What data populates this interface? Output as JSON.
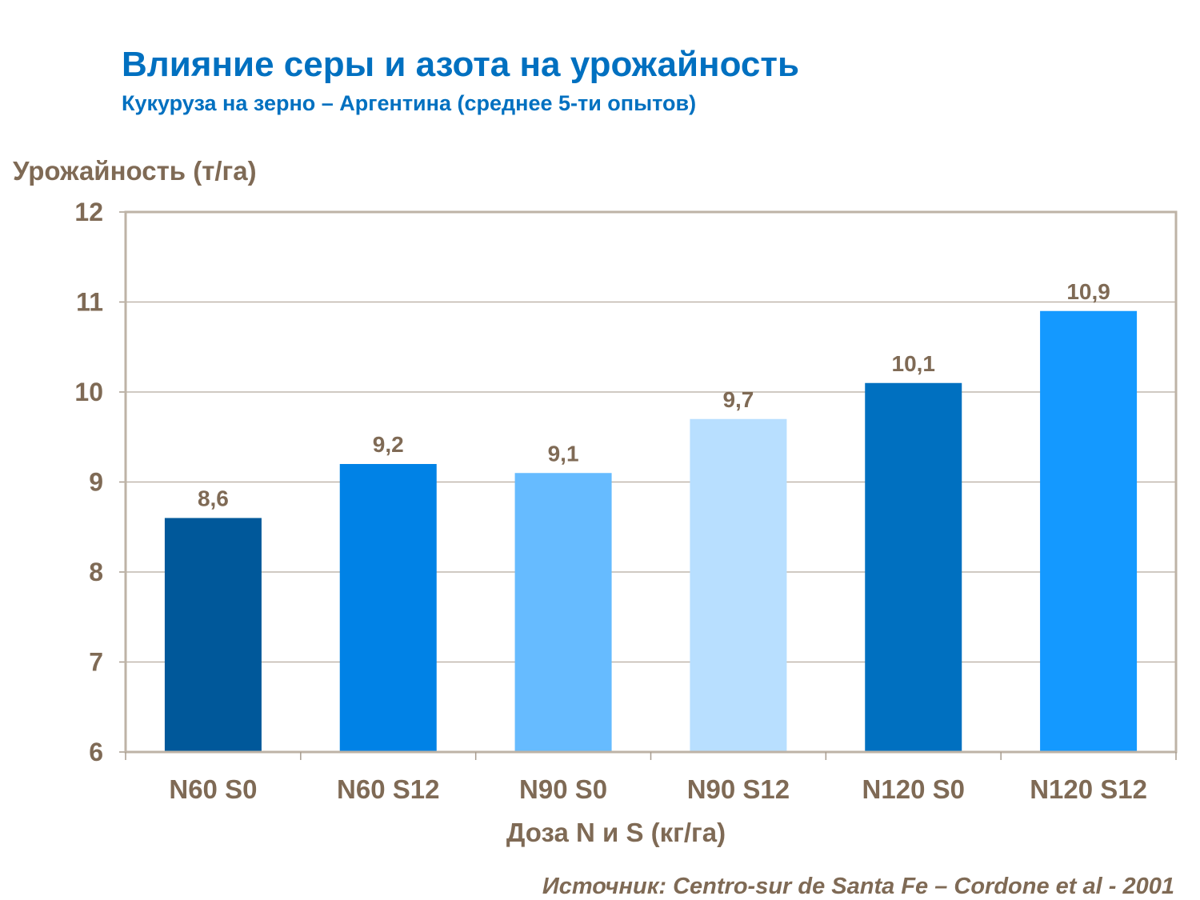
{
  "chart_data": {
    "type": "bar",
    "title": "Влияние серы и азота на урожайность",
    "subtitle": "Кукуруза на зерно – Аргентина (среднее 5-ти опытов)",
    "ylabel": "Урожайность (т/га)",
    "xlabel": "Доза N и S (кг/га)",
    "categories": [
      "N60 S0",
      "N60 S12",
      "N90 S0",
      "N90 S12",
      "N120 S0",
      "N120 S12"
    ],
    "values": [
      8.6,
      9.2,
      9.1,
      9.7,
      10.1,
      10.9
    ],
    "data_labels": [
      "8,6",
      "9,2",
      "9,1",
      "9,7",
      "10,1",
      "10,9"
    ],
    "colors": [
      "#00589A",
      "#0082E6",
      "#66BBFF",
      "#B8DFFF",
      "#0070C0",
      "#1499FF"
    ],
    "ylim": [
      6,
      12
    ],
    "yticks": [
      "6",
      "7",
      "8",
      "9",
      "10",
      "11",
      "12"
    ],
    "grid": true,
    "legend": "none",
    "source": "Источник: Centro-sur de Santa Fe – Cordone et al - 2001"
  }
}
